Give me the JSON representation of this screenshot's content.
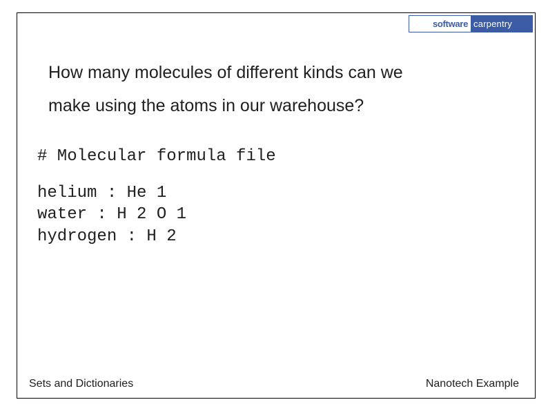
{
  "logo": {
    "left": "software",
    "right": "carpentry"
  },
  "question": {
    "line1": "How many molecules of different kinds can we",
    "line2": "make using the atoms in our warehouse?"
  },
  "code": {
    "comment": "# Molecular formula file",
    "lines": [
      "helium : He 1",
      "water : H 2 O 1",
      "hydrogen : H 2"
    ]
  },
  "footer": {
    "left": "Sets and Dictionaries",
    "right": "Nanotech Example"
  },
  "colors": {
    "border": "#000000",
    "logo_blue": "#3b5ba5",
    "text": "#202020",
    "background": "#ffffff"
  },
  "typography": {
    "body_fontsize": 25,
    "code_fontsize": 24,
    "footer_fontsize": 16,
    "logo_fontsize": 13
  }
}
